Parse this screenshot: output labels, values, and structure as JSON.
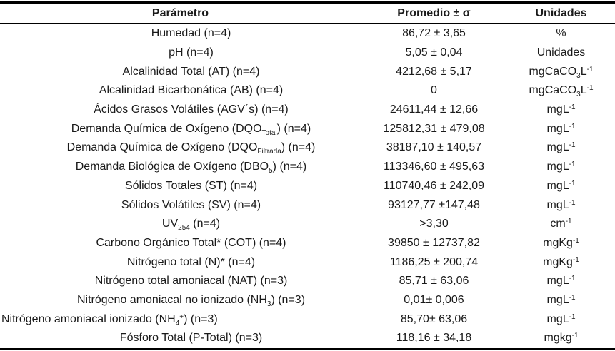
{
  "colors": {
    "border": "#000000",
    "text": "#1a1a1a",
    "background": "#ffffff"
  },
  "table": {
    "columns": [
      {
        "label": "Parámetro"
      },
      {
        "label": "Promedio ± σ"
      },
      {
        "label": "Unidades"
      }
    ],
    "rows": [
      {
        "param": [
          {
            "t": "Humedad (n=4)"
          }
        ],
        "value": "86,72 ± 3,65",
        "unit": [
          {
            "t": "%"
          }
        ]
      },
      {
        "param": [
          {
            "t": "pH (n=4)"
          }
        ],
        "value": "5,05 ± 0,04",
        "unit": [
          {
            "t": "Unidades"
          }
        ]
      },
      {
        "param": [
          {
            "t": "Alcalinidad Total (AT) (n=4)"
          }
        ],
        "value": "4212,68 ± 5,17",
        "unit": [
          {
            "t": "mgCaCO"
          },
          {
            "t": "3",
            "s": "sub"
          },
          {
            "t": "L"
          },
          {
            "t": "-1",
            "s": "sup"
          }
        ]
      },
      {
        "param": [
          {
            "t": "Alcalinidad Bicarbonática (AB) (n=4)"
          }
        ],
        "value": "0",
        "unit": [
          {
            "t": "mgCaCO"
          },
          {
            "t": "3",
            "s": "sub"
          },
          {
            "t": "L"
          },
          {
            "t": "-1",
            "s": "sup"
          }
        ]
      },
      {
        "param": [
          {
            "t": "Ácidos Grasos Volátiles (AGV´s) (n=4)"
          }
        ],
        "value": "24611,44 ± 12,66",
        "unit": [
          {
            "t": "mgL"
          },
          {
            "t": "-1",
            "s": "sup"
          }
        ]
      },
      {
        "param": [
          {
            "t": "Demanda Química de Oxígeno (DQO"
          },
          {
            "t": "Total",
            "s": "sub"
          },
          {
            "t": ") (n=4)"
          }
        ],
        "value": "125812,31 ± 479,08",
        "unit": [
          {
            "t": "mgL"
          },
          {
            "t": "-1",
            "s": "sup"
          }
        ]
      },
      {
        "param": [
          {
            "t": "Demanda Química de Oxígeno (DQO"
          },
          {
            "t": "Filtrada",
            "s": "sub"
          },
          {
            "t": ") (n=4)"
          }
        ],
        "value": "38187,10 ± 140,57",
        "unit": [
          {
            "t": "mgL"
          },
          {
            "t": "-1",
            "s": "sup"
          }
        ]
      },
      {
        "param": [
          {
            "t": "Demanda Biológica de Oxígeno (DBO"
          },
          {
            "t": "5",
            "s": "sub"
          },
          {
            "t": ") (n=4)"
          }
        ],
        "value": "113346,60  ± 495,63",
        "unit": [
          {
            "t": "mgL"
          },
          {
            "t": "-1",
            "s": "sup"
          }
        ]
      },
      {
        "param": [
          {
            "t": "Sólidos Totales (ST) (n=4)"
          }
        ],
        "value": "110740,46 ± 242,09",
        "unit": [
          {
            "t": "mgL"
          },
          {
            "t": "-1",
            "s": "sup"
          }
        ]
      },
      {
        "param": [
          {
            "t": "Sólidos Volátiles (SV) (n=4)"
          }
        ],
        "value": "93127,77 ±147,48",
        "unit": [
          {
            "t": "mgL"
          },
          {
            "t": "-1",
            "s": "sup"
          }
        ]
      },
      {
        "param": [
          {
            "t": "UV"
          },
          {
            "t": "254",
            "s": "sub"
          },
          {
            "t": " (n=4)"
          }
        ],
        "value": ">3,30",
        "unit": [
          {
            "t": "cm"
          },
          {
            "t": "-1",
            "s": "sup"
          }
        ]
      },
      {
        "param": [
          {
            "t": "Carbono Orgánico Total* (COT) (n=4)"
          }
        ],
        "value": "39850 ± 12737,82",
        "unit": [
          {
            "t": "mgKg"
          },
          {
            "t": "-1",
            "s": "sup"
          }
        ]
      },
      {
        "param": [
          {
            "t": "Nitrógeno total (N)* (n=4)"
          }
        ],
        "value": "1186,25 ± 200,74",
        "unit": [
          {
            "t": "mgKg"
          },
          {
            "t": "-1",
            "s": "sup"
          }
        ]
      },
      {
        "param": [
          {
            "t": "Nitrógeno total amoniacal (NAT) (n=3)"
          }
        ],
        "value": "85,71 ± 63,06",
        "unit": [
          {
            "t": "mgL"
          },
          {
            "t": "-1",
            "s": "sup"
          }
        ]
      },
      {
        "param": [
          {
            "t": "Nitrógeno amoniacal no ionizado (NH"
          },
          {
            "t": "3",
            "s": "sub"
          },
          {
            "t": ") (n=3)"
          }
        ],
        "value": "0,01± 0,006",
        "unit": [
          {
            "t": "mgL"
          },
          {
            "t": "-1",
            "s": "sup"
          }
        ]
      },
      {
        "param": [
          {
            "t": "Nitrógeno amoniacal ionizado (NH"
          },
          {
            "t": "4",
            "s": "sub"
          },
          {
            "t": "+",
            "s": "sup"
          },
          {
            "t": ") (n=3)"
          }
        ],
        "value": "85,70± 63,06",
        "unit": [
          {
            "t": "mgL"
          },
          {
            "t": "-1",
            "s": "sup"
          }
        ],
        "param_align": "left"
      },
      {
        "param": [
          {
            "t": "Fósforo Total (P-Total) (n=3)"
          }
        ],
        "value": "118,16 ± 34,18",
        "unit": [
          {
            "t": "mgkg"
          },
          {
            "t": "-1",
            "s": "sup"
          }
        ]
      }
    ]
  }
}
